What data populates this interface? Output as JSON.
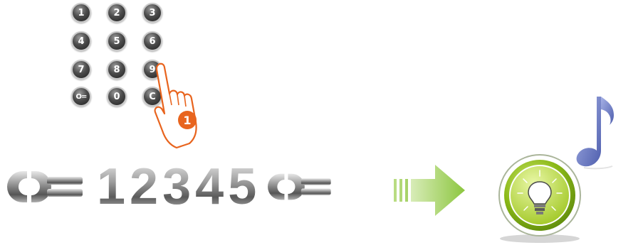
{
  "keypad": {
    "keys": [
      "1",
      "2",
      "3",
      "4",
      "5",
      "6",
      "7",
      "8",
      "9",
      "O=",
      "0",
      "C"
    ],
    "step_badge": "1"
  },
  "code_sequence": {
    "start_key_symbol": "O=",
    "digits": [
      "1",
      "2",
      "3",
      "4",
      "5"
    ],
    "end_key_symbol": "O="
  },
  "icons": {
    "hand": "pointing-hand-icon",
    "arrow": "green-right-arrow-icon",
    "result": "light-bulb-icon",
    "sound": "music-note-icon"
  },
  "colors": {
    "key_dark": "#2a2a2a",
    "badge": "#e8641e",
    "arrow": "#8cc63f",
    "bulb_ring": "#8ab817",
    "note": "#6b7bc4"
  }
}
